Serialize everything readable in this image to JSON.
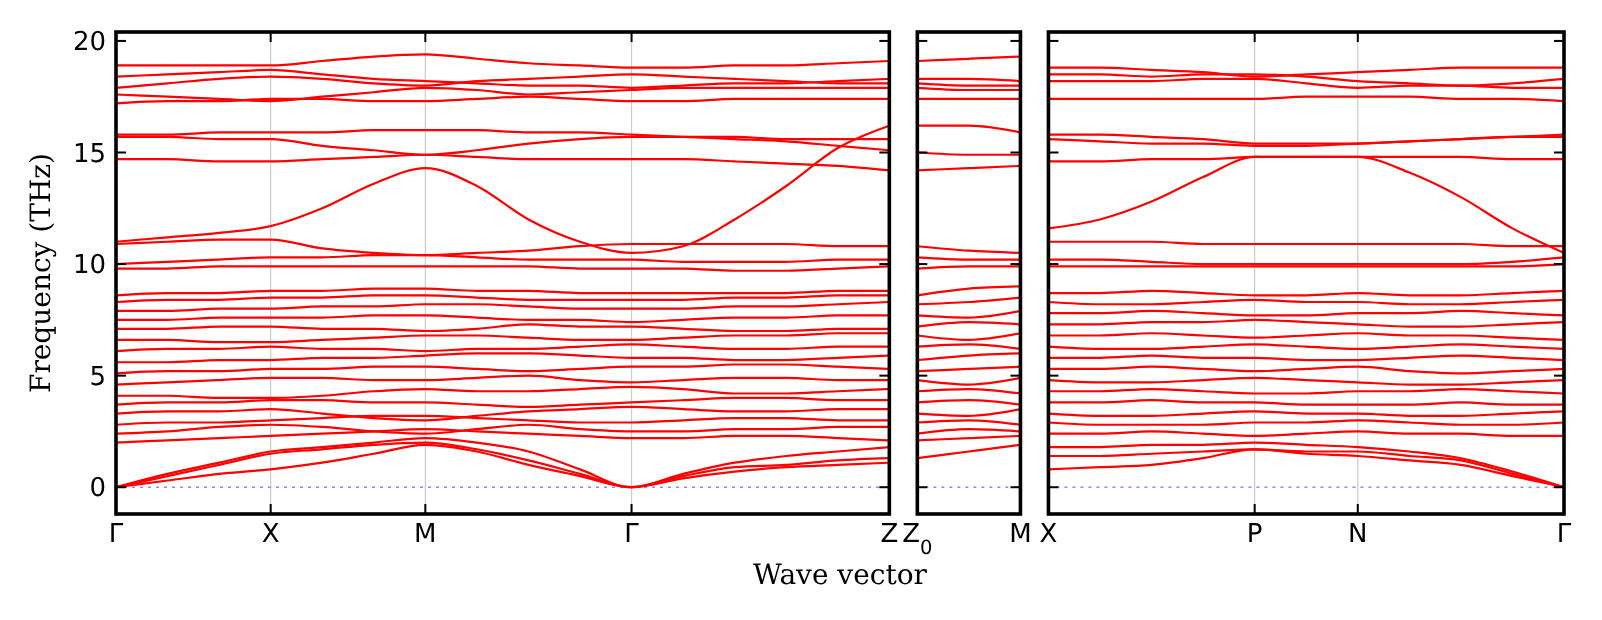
{
  "chart_data": [
    {
      "type": "line",
      "ylabel": "Frequency (THz)",
      "ylim": [
        -1.2,
        20.4
      ],
      "yticks": [
        0,
        5,
        10,
        15,
        20
      ],
      "categories": [
        "Γ",
        null,
        null,
        "X",
        null,
        null,
        "M",
        null,
        null,
        null,
        "Γ",
        null,
        null,
        null,
        null,
        "Z"
      ],
      "grid": "x",
      "line_style": "solid",
      "marker": "none",
      "ref_lines": [
        {
          "axis": "y",
          "value": 0,
          "color": "#8888ff",
          "line_style": "dotted"
        }
      ],
      "series": [
        {
          "color": "#ff0000",
          "values": [
            18.9,
            18.9,
            18.9,
            18.9,
            19.1,
            19.3,
            19.4,
            19.2,
            19.0,
            18.9,
            18.8,
            18.8,
            18.9,
            18.9,
            19.0,
            19.1
          ]
        },
        {
          "color": "#ff0000",
          "values": [
            18.4,
            18.5,
            18.6,
            18.7,
            18.5,
            18.3,
            18.2,
            18.1,
            18.0,
            18.0,
            17.9,
            18.0,
            18.1,
            18.1,
            18.2,
            18.3
          ]
        },
        {
          "color": "#ff0000",
          "values": [
            17.9,
            18.1,
            18.3,
            18.4,
            18.3,
            18.1,
            18.0,
            18.2,
            18.3,
            18.4,
            18.5,
            18.4,
            18.3,
            18.2,
            18.1,
            18.1
          ]
        },
        {
          "color": "#ff0000",
          "values": [
            17.6,
            17.5,
            17.4,
            17.3,
            17.5,
            17.7,
            17.9,
            17.8,
            17.6,
            17.7,
            17.8,
            17.9,
            17.9,
            17.9,
            17.9,
            17.9
          ]
        },
        {
          "color": "#ff0000",
          "values": [
            17.2,
            17.3,
            17.3,
            17.4,
            17.4,
            17.3,
            17.3,
            17.4,
            17.5,
            17.4,
            17.3,
            17.3,
            17.4,
            17.4,
            17.4,
            17.4
          ]
        },
        {
          "color": "#ff0000",
          "values": [
            15.8,
            15.8,
            15.9,
            15.9,
            15.9,
            16.0,
            16.0,
            16.0,
            15.9,
            15.9,
            15.8,
            15.7,
            15.6,
            15.5,
            15.3,
            15.1
          ]
        },
        {
          "color": "#ff0000",
          "values": [
            15.7,
            15.7,
            15.6,
            15.6,
            15.3,
            15.1,
            14.9,
            15.1,
            15.4,
            15.6,
            15.7,
            15.7,
            15.7,
            15.6,
            15.6,
            15.6
          ]
        },
        {
          "color": "#ff0000",
          "values": [
            14.7,
            14.7,
            14.6,
            14.6,
            14.7,
            14.8,
            14.9,
            14.8,
            14.7,
            14.7,
            14.7,
            14.7,
            14.6,
            14.5,
            14.4,
            14.2
          ]
        },
        {
          "color": "#ff0000",
          "values": [
            11.0,
            11.2,
            11.4,
            11.7,
            12.5,
            13.6,
            14.3,
            13.5,
            12.0,
            11.0,
            10.5,
            10.8,
            12.0,
            13.5,
            15.2,
            16.2
          ]
        },
        {
          "color": "#ff0000",
          "values": [
            10.9,
            11.0,
            11.1,
            11.1,
            10.7,
            10.5,
            10.4,
            10.5,
            10.6,
            10.8,
            10.9,
            10.9,
            10.9,
            10.9,
            10.8,
            10.8
          ]
        },
        {
          "color": "#ff0000",
          "values": [
            10.0,
            10.1,
            10.2,
            10.3,
            10.3,
            10.4,
            10.4,
            10.3,
            10.2,
            10.2,
            10.2,
            10.1,
            10.1,
            10.1,
            10.2,
            10.2
          ]
        },
        {
          "color": "#ff0000",
          "values": [
            9.8,
            9.8,
            9.9,
            9.9,
            9.9,
            9.9,
            9.9,
            9.9,
            9.9,
            9.8,
            9.8,
            9.8,
            9.7,
            9.7,
            9.8,
            9.9
          ]
        },
        {
          "color": "#ff0000",
          "values": [
            8.6,
            8.7,
            8.7,
            8.8,
            8.8,
            8.9,
            8.9,
            8.8,
            8.8,
            8.7,
            8.7,
            8.7,
            8.7,
            8.7,
            8.8,
            8.8
          ]
        },
        {
          "color": "#ff0000",
          "values": [
            8.3,
            8.4,
            8.4,
            8.5,
            8.5,
            8.6,
            8.6,
            8.5,
            8.4,
            8.4,
            8.4,
            8.4,
            8.5,
            8.5,
            8.6,
            8.6
          ]
        },
        {
          "color": "#ff0000",
          "values": [
            7.9,
            7.9,
            8.0,
            8.0,
            8.1,
            8.1,
            8.2,
            8.2,
            8.1,
            8.0,
            8.0,
            8.0,
            8.1,
            8.1,
            8.2,
            8.3
          ]
        },
        {
          "color": "#ff0000",
          "values": [
            7.5,
            7.5,
            7.6,
            7.6,
            7.6,
            7.7,
            7.7,
            7.6,
            7.5,
            7.5,
            7.4,
            7.5,
            7.6,
            7.6,
            7.7,
            7.7
          ]
        },
        {
          "color": "#ff0000",
          "values": [
            7.1,
            7.1,
            7.2,
            7.2,
            7.1,
            7.1,
            7.0,
            7.1,
            7.3,
            7.2,
            7.2,
            7.1,
            7.0,
            7.0,
            7.1,
            7.1
          ]
        },
        {
          "color": "#ff0000",
          "values": [
            6.6,
            6.6,
            6.5,
            6.5,
            6.6,
            6.7,
            6.8,
            6.8,
            6.7,
            6.6,
            6.6,
            6.7,
            6.8,
            6.8,
            6.9,
            6.9
          ]
        },
        {
          "color": "#ff0000",
          "values": [
            6.1,
            6.2,
            6.2,
            6.3,
            6.2,
            6.2,
            6.1,
            6.2,
            6.2,
            6.3,
            6.4,
            6.3,
            6.2,
            6.2,
            6.3,
            6.3
          ]
        },
        {
          "color": "#ff0000",
          "values": [
            5.6,
            5.6,
            5.7,
            5.7,
            5.8,
            5.8,
            5.9,
            6.0,
            6.0,
            5.9,
            5.8,
            5.8,
            5.7,
            5.7,
            5.8,
            5.9
          ]
        },
        {
          "color": "#ff0000",
          "values": [
            5.1,
            5.2,
            5.2,
            5.3,
            5.3,
            5.4,
            5.4,
            5.3,
            5.2,
            5.3,
            5.4,
            5.4,
            5.5,
            5.5,
            5.4,
            5.3
          ]
        },
        {
          "color": "#ff0000",
          "values": [
            4.6,
            4.7,
            4.8,
            4.9,
            4.9,
            4.8,
            4.8,
            4.9,
            5.0,
            4.8,
            4.7,
            4.8,
            4.9,
            4.9,
            4.8,
            4.8
          ]
        },
        {
          "color": "#ff0000",
          "values": [
            4.1,
            4.1,
            4.0,
            4.0,
            4.1,
            4.3,
            4.4,
            4.3,
            4.3,
            4.4,
            4.5,
            4.4,
            4.2,
            4.2,
            4.3,
            4.4
          ]
        },
        {
          "color": "#ff0000",
          "values": [
            3.7,
            3.8,
            3.8,
            3.9,
            3.9,
            3.8,
            3.8,
            3.7,
            3.6,
            3.7,
            3.8,
            3.9,
            4.0,
            4.0,
            3.9,
            3.9
          ]
        },
        {
          "color": "#ff0000",
          "values": [
            3.3,
            3.4,
            3.4,
            3.5,
            3.3,
            3.1,
            3.0,
            3.2,
            3.4,
            3.5,
            3.6,
            3.5,
            3.4,
            3.4,
            3.5,
            3.5
          ]
        },
        {
          "color": "#ff0000",
          "values": [
            2.8,
            2.9,
            2.9,
            3.0,
            3.1,
            3.2,
            3.2,
            3.1,
            3.0,
            2.9,
            2.9,
            3.0,
            3.1,
            3.1,
            3.0,
            3.0
          ]
        },
        {
          "color": "#ff0000",
          "values": [
            2.4,
            2.5,
            2.7,
            2.8,
            2.7,
            2.5,
            2.4,
            2.6,
            2.8,
            2.6,
            2.5,
            2.5,
            2.6,
            2.6,
            2.7,
            2.7
          ]
        },
        {
          "color": "#ff0000",
          "values": [
            2.0,
            2.1,
            2.2,
            2.3,
            2.4,
            2.5,
            2.6,
            2.5,
            2.4,
            2.3,
            2.2,
            2.2,
            2.3,
            2.3,
            2.2,
            2.1
          ]
        },
        {
          "color": "#ff0000",
          "values": [
            0,
            0.6,
            1.1,
            1.6,
            1.8,
            2.0,
            2.2,
            2.0,
            1.6,
            0.8,
            0,
            0.6,
            1.1,
            1.4,
            1.6,
            1.8
          ]
        },
        {
          "color": "#ff0000",
          "values": [
            0,
            0.5,
            1.0,
            1.5,
            1.7,
            1.9,
            2.0,
            1.7,
            1.2,
            0.6,
            0,
            0.4,
            0.7,
            0.9,
            1.0,
            1.1
          ]
        },
        {
          "color": "#ff0000",
          "values": [
            0,
            0.3,
            0.6,
            0.8,
            1.1,
            1.5,
            1.9,
            1.6,
            1.0,
            0.5,
            0,
            0.5,
            0.9,
            1.0,
            1.2,
            1.3
          ]
        }
      ]
    },
    {
      "type": "line",
      "xlabel": "Wave vector",
      "ylim": [
        -1.2,
        20.4
      ],
      "yticks": [
        0,
        5,
        10,
        15,
        20
      ],
      "categories": [
        "Z$_{0}$",
        null,
        "M"
      ],
      "tick_labels": "x",
      "line_style": "solid",
      "marker": "none",
      "ref_lines": [
        {
          "axis": "y",
          "value": 0,
          "color": "#8888ff",
          "line_style": "dotted"
        }
      ],
      "series": [
        {
          "color": "#ff0000",
          "values": [
            19.1,
            19.2,
            19.3
          ]
        },
        {
          "color": "#ff0000",
          "values": [
            18.3,
            18.3,
            18.2
          ]
        },
        {
          "color": "#ff0000",
          "values": [
            18.1,
            18.0,
            18.0
          ]
        },
        {
          "color": "#ff0000",
          "values": [
            17.9,
            17.8,
            17.8
          ]
        },
        {
          "color": "#ff0000",
          "values": [
            17.4,
            17.4,
            17.4
          ]
        },
        {
          "color": "#ff0000",
          "values": [
            16.2,
            16.2,
            15.9
          ]
        },
        {
          "color": "#ff0000",
          "values": [
            15.0,
            14.9,
            14.9
          ]
        },
        {
          "color": "#ff0000",
          "values": [
            14.2,
            14.3,
            14.4
          ]
        },
        {
          "color": "#ff0000",
          "values": [
            10.8,
            10.6,
            10.5
          ]
        },
        {
          "color": "#ff0000",
          "values": [
            10.3,
            10.2,
            10.2
          ]
        },
        {
          "color": "#ff0000",
          "values": [
            9.8,
            9.9,
            9.9
          ]
        },
        {
          "color": "#ff0000",
          "values": [
            8.6,
            8.9,
            9.0
          ]
        },
        {
          "color": "#ff0000",
          "values": [
            8.2,
            8.3,
            8.5
          ]
        },
        {
          "color": "#ff0000",
          "values": [
            7.7,
            7.6,
            7.9
          ]
        },
        {
          "color": "#ff0000",
          "values": [
            7.2,
            7.4,
            7.3
          ]
        },
        {
          "color": "#ff0000",
          "values": [
            6.8,
            6.6,
            6.9
          ]
        },
        {
          "color": "#ff0000",
          "values": [
            6.3,
            6.4,
            6.2
          ]
        },
        {
          "color": "#ff0000",
          "values": [
            5.7,
            5.9,
            6.0
          ]
        },
        {
          "color": "#ff0000",
          "values": [
            5.2,
            5.3,
            5.4
          ]
        },
        {
          "color": "#ff0000",
          "values": [
            4.8,
            4.6,
            4.9
          ]
        },
        {
          "color": "#ff0000",
          "values": [
            4.3,
            4.4,
            4.2
          ]
        },
        {
          "color": "#ff0000",
          "values": [
            3.8,
            3.9,
            3.7
          ]
        },
        {
          "color": "#ff0000",
          "values": [
            3.3,
            3.2,
            3.5
          ]
        },
        {
          "color": "#ff0000",
          "values": [
            2.9,
            3.0,
            2.8
          ]
        },
        {
          "color": "#ff0000",
          "values": [
            2.4,
            2.6,
            2.5
          ]
        },
        {
          "color": "#ff0000",
          "values": [
            2.1,
            2.2,
            2.3
          ]
        },
        {
          "color": "#ff0000",
          "values": [
            1.3,
            1.6,
            1.9
          ]
        }
      ]
    },
    {
      "type": "line",
      "ylim": [
        -1.2,
        20.4
      ],
      "yticks": [
        0,
        5,
        10,
        15,
        20
      ],
      "categories": [
        "X",
        null,
        null,
        null,
        "P",
        null,
        "N",
        null,
        null,
        null,
        "Γ"
      ],
      "tick_labels": "x",
      "grid": "x",
      "line_style": "solid",
      "marker": "none",
      "ref_lines": [
        {
          "axis": "y",
          "value": 0,
          "color": "#8888ff",
          "line_style": "dotted"
        }
      ],
      "series": [
        {
          "color": "#ff0000",
          "values": [
            18.8,
            18.8,
            18.7,
            18.6,
            18.4,
            18.5,
            18.6,
            18.7,
            18.8,
            18.8,
            18.8
          ]
        },
        {
          "color": "#ff0000",
          "values": [
            18.5,
            18.5,
            18.4,
            18.5,
            18.5,
            18.4,
            18.2,
            18.1,
            18.0,
            18.1,
            18.3
          ]
        },
        {
          "color": "#ff0000",
          "values": [
            18.2,
            18.2,
            18.2,
            18.3,
            18.3,
            18.1,
            17.9,
            18.0,
            18.0,
            17.9,
            17.9
          ]
        },
        {
          "color": "#ff0000",
          "values": [
            17.4,
            17.4,
            17.4,
            17.4,
            17.4,
            17.5,
            17.5,
            17.5,
            17.4,
            17.4,
            17.3
          ]
        },
        {
          "color": "#ff0000",
          "values": [
            15.8,
            15.8,
            15.7,
            15.6,
            15.4,
            15.4,
            15.4,
            15.5,
            15.6,
            15.7,
            15.8
          ]
        },
        {
          "color": "#ff0000",
          "values": [
            15.6,
            15.5,
            15.4,
            15.4,
            15.3,
            15.3,
            15.4,
            15.5,
            15.6,
            15.7,
            15.7
          ]
        },
        {
          "color": "#ff0000",
          "values": [
            14.6,
            14.6,
            14.7,
            14.7,
            14.8,
            14.8,
            14.8,
            14.8,
            14.8,
            14.7,
            14.7
          ]
        },
        {
          "color": "#ff0000",
          "values": [
            11.6,
            12.0,
            12.8,
            13.9,
            14.8,
            14.8,
            14.8,
            14.1,
            13.0,
            11.6,
            10.5
          ]
        },
        {
          "color": "#ff0000",
          "values": [
            11.0,
            11.0,
            11.0,
            10.9,
            10.9,
            10.9,
            10.9,
            10.9,
            10.9,
            10.8,
            10.8
          ]
        },
        {
          "color": "#ff0000",
          "values": [
            10.2,
            10.2,
            10.1,
            10.0,
            10.0,
            10.0,
            10.0,
            10.0,
            10.0,
            10.1,
            10.3
          ]
        },
        {
          "color": "#ff0000",
          "values": [
            9.9,
            9.9,
            9.9,
            9.9,
            9.9,
            9.9,
            9.9,
            9.9,
            9.9,
            9.9,
            10.0
          ]
        },
        {
          "color": "#ff0000",
          "values": [
            8.7,
            8.7,
            8.8,
            8.7,
            8.6,
            8.6,
            8.7,
            8.6,
            8.6,
            8.7,
            8.8
          ]
        },
        {
          "color": "#ff0000",
          "values": [
            8.3,
            8.2,
            8.2,
            8.3,
            8.4,
            8.3,
            8.3,
            8.2,
            8.2,
            8.3,
            8.4
          ]
        },
        {
          "color": "#ff0000",
          "values": [
            7.8,
            7.8,
            7.9,
            7.8,
            7.7,
            7.7,
            7.8,
            7.8,
            7.9,
            7.8,
            7.7
          ]
        },
        {
          "color": "#ff0000",
          "values": [
            7.3,
            7.3,
            7.4,
            7.4,
            7.5,
            7.4,
            7.3,
            7.2,
            7.2,
            7.3,
            7.4
          ]
        },
        {
          "color": "#ff0000",
          "values": [
            6.8,
            6.8,
            6.9,
            6.8,
            6.7,
            6.8,
            6.9,
            6.8,
            6.8,
            6.7,
            6.6
          ]
        },
        {
          "color": "#ff0000",
          "values": [
            6.3,
            6.2,
            6.2,
            6.3,
            6.4,
            6.3,
            6.2,
            6.3,
            6.4,
            6.3,
            6.2
          ]
        },
        {
          "color": "#ff0000",
          "values": [
            5.8,
            5.8,
            5.9,
            5.8,
            5.8,
            5.7,
            5.7,
            5.8,
            5.9,
            5.8,
            5.7
          ]
        },
        {
          "color": "#ff0000",
          "values": [
            5.3,
            5.3,
            5.4,
            5.3,
            5.2,
            5.3,
            5.4,
            5.2,
            5.1,
            5.2,
            5.3
          ]
        },
        {
          "color": "#ff0000",
          "values": [
            4.8,
            4.7,
            4.7,
            4.8,
            4.9,
            4.8,
            4.7,
            4.6,
            4.6,
            4.7,
            4.8
          ]
        },
        {
          "color": "#ff0000",
          "values": [
            4.3,
            4.3,
            4.4,
            4.3,
            4.2,
            4.2,
            4.3,
            4.3,
            4.4,
            4.3,
            4.2
          ]
        },
        {
          "color": "#ff0000",
          "values": [
            3.8,
            3.8,
            3.9,
            3.8,
            3.8,
            3.7,
            3.7,
            3.7,
            3.8,
            3.7,
            3.7
          ]
        },
        {
          "color": "#ff0000",
          "values": [
            3.3,
            3.2,
            3.2,
            3.3,
            3.4,
            3.3,
            3.3,
            3.2,
            3.2,
            3.3,
            3.4
          ]
        },
        {
          "color": "#ff0000",
          "values": [
            2.9,
            2.8,
            2.8,
            2.8,
            2.9,
            2.9,
            3.0,
            2.9,
            2.8,
            2.8,
            2.9
          ]
        },
        {
          "color": "#ff0000",
          "values": [
            2.4,
            2.4,
            2.5,
            2.4,
            2.3,
            2.4,
            2.5,
            2.4,
            2.4,
            2.3,
            2.3
          ]
        },
        {
          "color": "#ff0000",
          "values": [
            1.8,
            1.8,
            1.9,
            1.9,
            2.0,
            1.9,
            1.8,
            1.6,
            1.3,
            0.7,
            0
          ]
        },
        {
          "color": "#ff0000",
          "values": [
            1.4,
            1.4,
            1.5,
            1.6,
            1.7,
            1.6,
            1.6,
            1.4,
            1.2,
            0.6,
            0
          ]
        },
        {
          "color": "#ff0000",
          "values": [
            0.8,
            0.9,
            1.0,
            1.3,
            1.7,
            1.5,
            1.4,
            1.2,
            1.0,
            0.5,
            0
          ]
        }
      ]
    }
  ]
}
